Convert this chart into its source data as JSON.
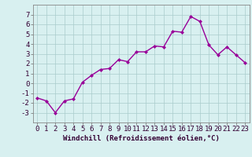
{
  "x": [
    0,
    1,
    2,
    3,
    4,
    5,
    6,
    7,
    8,
    9,
    10,
    11,
    12,
    13,
    14,
    15,
    16,
    17,
    18,
    19,
    20,
    21,
    22,
    23
  ],
  "y": [
    -1.5,
    -1.8,
    -3.0,
    -1.8,
    -1.6,
    0.1,
    0.8,
    1.4,
    1.5,
    2.4,
    2.2,
    3.2,
    3.2,
    3.8,
    3.7,
    5.3,
    5.2,
    6.8,
    6.3,
    3.9,
    2.9,
    3.7,
    2.9,
    2.1
  ],
  "line_color": "#990099",
  "marker": "D",
  "marker_size": 2,
  "bg_color": "#d8f0f0",
  "grid_color": "#aacccc",
  "xlabel": "Windchill (Refroidissement éolien,°C)",
  "xlabel_fontsize": 6.5,
  "ylim": [
    -4,
    8
  ],
  "xlim": [
    -0.5,
    23.5
  ],
  "yticks": [
    -3,
    -2,
    -1,
    0,
    1,
    2,
    3,
    4,
    5,
    6,
    7
  ],
  "xticks": [
    0,
    1,
    2,
    3,
    4,
    5,
    6,
    7,
    8,
    9,
    10,
    11,
    12,
    13,
    14,
    15,
    16,
    17,
    18,
    19,
    20,
    21,
    22,
    23
  ],
  "tick_fontsize": 6.5,
  "linewidth": 1.0
}
